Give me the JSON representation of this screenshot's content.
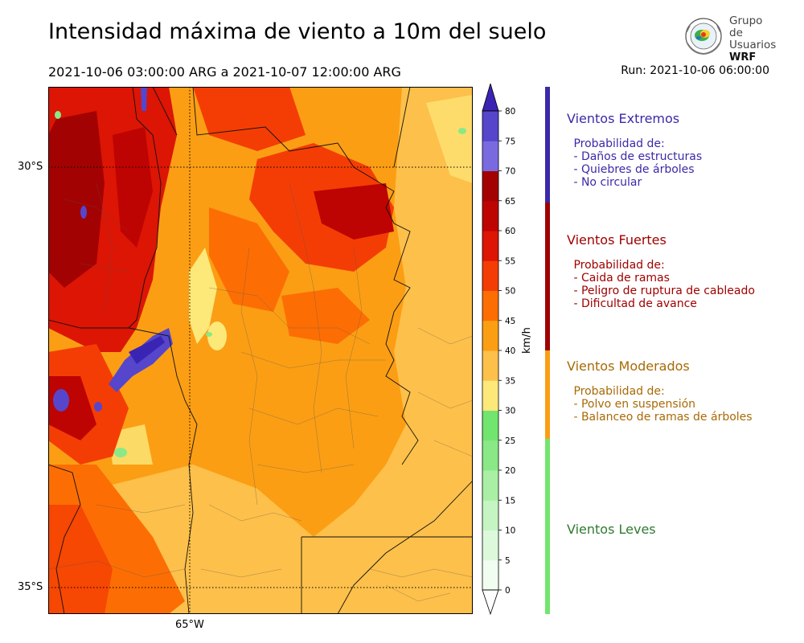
{
  "header": {
    "title": "Intensidad máxima de viento a 10m del suelo",
    "period": "2021-10-06 03:00:00 ARG  a  2021-10-07 12:00:00 ARG",
    "run": "Run: 2021-10-06 06:00:00"
  },
  "logo": {
    "line1": "Grupo de",
    "line2": "Usuarios",
    "line3": "WRF"
  },
  "map": {
    "lat_labels": [
      "30°S",
      "35°S"
    ],
    "lon_labels": [
      "65°W"
    ]
  },
  "colorbar": {
    "units": "km/h",
    "ticks": [
      "0",
      "5",
      "10",
      "15",
      "20",
      "25",
      "30",
      "35",
      "40",
      "45",
      "50",
      "55",
      "60",
      "65",
      "70",
      "75",
      "80"
    ],
    "colors": [
      "#f1fdf1",
      "#ddf9dc",
      "#c5f5c2",
      "#a9f0a4",
      "#8ae986",
      "#72e56e",
      "#fde87a",
      "#fdc04a",
      "#fb9e14",
      "#fc6e04",
      "#f43d04",
      "#dc1504",
      "#be0303",
      "#a30202",
      "#7a6ae0",
      "#5646cc",
      "#3924b4"
    ],
    "over_color": "#3924b4"
  },
  "categories": [
    {
      "name": "Vientos Extremos",
      "text": " Probabilidad de:\n - Daños de estructuras\n - Quiebres de árboles\n - No circular",
      "color": "#3a2aa8",
      "bar_color": "#3a2aa8"
    },
    {
      "name": "Vientos Fuertes",
      "text": " Probabilidad de:\n - Caida de ramas\n - Peligro de ruptura de cableado\n - Dificultad de avance",
      "color": "#a00000",
      "bar_color": "#a00000"
    },
    {
      "name": "Vientos Moderados",
      "text": " Probabilidad de:\n - Polvo en suspensión\n - Balanceo de ramas de árboles",
      "color": "#a86a06",
      "bar_color": "#fb9e14"
    },
    {
      "name": "Vientos Leves",
      "text": "",
      "color": "#2f7a2f",
      "bar_color": "#72e56e"
    }
  ]
}
